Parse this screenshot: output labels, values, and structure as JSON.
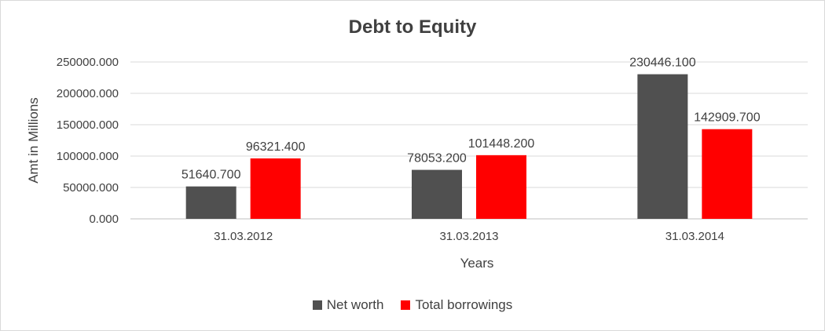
{
  "chart_data": {
    "type": "bar",
    "title": "Debt to Equity",
    "xlabel": "Years",
    "ylabel": "Amt in Millions",
    "categories": [
      "31.03.2012",
      "31.03.2013",
      "31.03.2014"
    ],
    "series": [
      {
        "name": "Net worth",
        "values": [
          51640.7,
          78053.2,
          230446.1
        ],
        "labels": [
          "51640.700",
          "78053.200",
          "230446.100"
        ],
        "color": "#505050"
      },
      {
        "name": "Total borrowings",
        "values": [
          96321.4,
          101448.2,
          142909.7
        ],
        "labels": [
          "96321.400",
          "101448.200",
          "142909.700"
        ],
        "color": "#ff0000"
      }
    ],
    "ylim": [
      0,
      250000
    ],
    "yticks": [
      "0.000",
      "50000.000",
      "100000.000",
      "150000.000",
      "200000.000",
      "250000.000"
    ],
    "grid": true,
    "legend_position": "bottom"
  }
}
